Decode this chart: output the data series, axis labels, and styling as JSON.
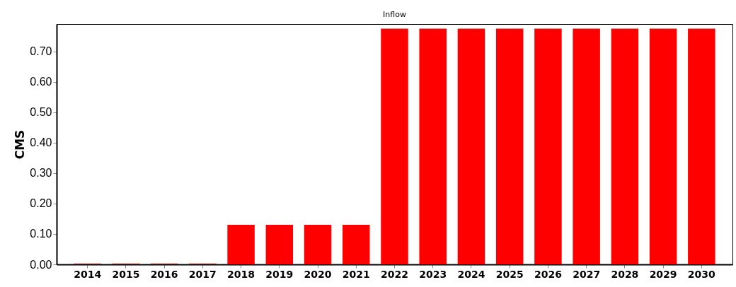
{
  "chart_data": {
    "type": "bar",
    "title": "Inflow",
    "ylabel": "CMS",
    "categories": [
      "2014",
      "2015",
      "2016",
      "2017",
      "2018",
      "2019",
      "2020",
      "2021",
      "2022",
      "2023",
      "2024",
      "2025",
      "2026",
      "2027",
      "2028",
      "2029",
      "2030"
    ],
    "values": [
      0.003,
      0.003,
      0.003,
      0.003,
      0.13,
      0.13,
      0.13,
      0.13,
      0.775,
      0.775,
      0.775,
      0.775,
      0.775,
      0.775,
      0.775,
      0.775,
      0.775
    ],
    "color": "#ff0000",
    "ylim": [
      0,
      0.79
    ],
    "yticks": [
      {
        "value": 0,
        "label": "0.00"
      },
      {
        "value": 0.1,
        "label": "0.10"
      },
      {
        "value": 0.2,
        "label": "0.20"
      },
      {
        "value": 0.3,
        "label": "0.30"
      },
      {
        "value": 0.4,
        "label": "0.40"
      },
      {
        "value": 0.5,
        "label": "0.50"
      },
      {
        "value": 0.6,
        "label": "0.60"
      },
      {
        "value": 0.7,
        "label": "0.70"
      }
    ],
    "grid": false
  }
}
